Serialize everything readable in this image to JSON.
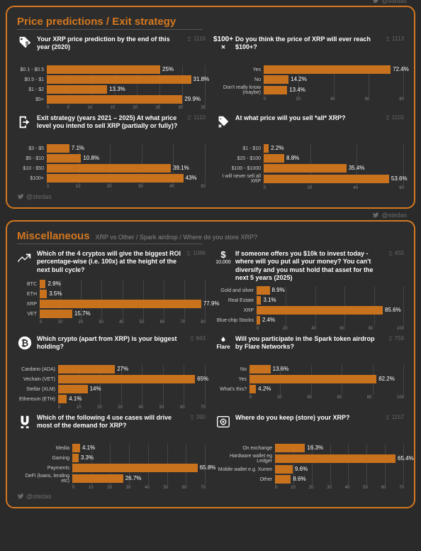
{
  "twitter_handle": "@stedas",
  "colors": {
    "accent": "#d47820",
    "bar": "#c9721e",
    "bg": "#2d2d2d",
    "text": "#ffffff",
    "muted": "#888888",
    "grid": "#444444"
  },
  "panels": [
    {
      "title": "Price predictions / Exit strategy",
      "subtitle": "",
      "charts": [
        {
          "icon": "tag",
          "question": "Your XRP price prediction by the end of this year (2020)",
          "votes": "1116",
          "label_width": 42,
          "xmax": 35,
          "xstep": 5,
          "bars": [
            {
              "label": "$0.1 - $0.5",
              "value": 25,
              "text": "25%"
            },
            {
              "label": "$0.5 - $1",
              "value": 31.8,
              "text": "31.8%"
            },
            {
              "label": "$1 - $2",
              "value": 13.3,
              "text": "13.3%"
            },
            {
              "label": "$5+",
              "value": 29.9,
              "text": "29.9%"
            }
          ]
        },
        {
          "icon": "hundred",
          "icon_text": "$100+",
          "question": "Do you think the price of XRP will ever reach $100+?",
          "votes": "1113",
          "label_width": 68,
          "xmax": 80,
          "xstep": 20,
          "bars": [
            {
              "label": "Yes",
              "value": 72.4,
              "text": "72.4%"
            },
            {
              "label": "No",
              "value": 14.2,
              "text": "14.2%"
            },
            {
              "label": "Don't really know (maybe)",
              "value": 13.4,
              "text": "13.4%"
            }
          ]
        },
        {
          "icon": "exit",
          "question": "Exit strategy (years 2021 – 2025) At what price level you intend to sell XRP (partially or fully)?",
          "votes": "1110",
          "label_width": 42,
          "xmax": 50,
          "xstep": 10,
          "bars": [
            {
              "label": "$3 - $5",
              "value": 7.1,
              "text": "7.1%"
            },
            {
              "label": "$5 - $10",
              "value": 10.8,
              "text": "10.8%"
            },
            {
              "label": "$10 - $50",
              "value": 39.1,
              "text": "39.1%"
            },
            {
              "label": "$100+",
              "value": 43,
              "text": "43%"
            }
          ]
        },
        {
          "icon": "sell-tag",
          "question": "At what price will you sell *all* XRP?",
          "votes": "1102",
          "label_width": 68,
          "xmax": 60,
          "xstep": 20,
          "bars": [
            {
              "label": "$1 - $10",
              "value": 2.2,
              "text": "2.2%"
            },
            {
              "label": "$20 - $100",
              "value": 8.8,
              "text": "8.8%"
            },
            {
              "label": "$100 - $1000",
              "value": 35.4,
              "text": "35.4%"
            },
            {
              "label": "I will never sell all XRP",
              "value": 53.6,
              "text": "53.6%"
            }
          ]
        }
      ]
    },
    {
      "title": "Miscellaneous",
      "subtitle": "XRP vs Other / Spark airdrop / Where do you store XRP?",
      "charts": [
        {
          "icon": "chart-up",
          "question": "Which of the 4 cryptos will give the biggest ROI percentage-wise (i.e. 100x) at the height of the next bull cycle?",
          "votes": "1086",
          "label_width": 32,
          "xmax": 80,
          "xstep": 10,
          "bars": [
            {
              "label": "BTC",
              "value": 2.9,
              "text": "2.9%"
            },
            {
              "label": "ETH",
              "value": 3.5,
              "text": "3.5%"
            },
            {
              "label": "XRP",
              "value": 77.9,
              "text": "77.9%"
            },
            {
              "label": "VET",
              "value": 15.7,
              "text": "15.7%"
            }
          ]
        },
        {
          "icon": "tenk",
          "icon_text": "$",
          "icon_sub": "10,000",
          "question": "If someone offers you $10k to invest today - where will you put all your money? You can't diversify and you must hold that asset for the next 5 years (2025)",
          "votes": "450",
          "label_width": 58,
          "xmax": 100,
          "xstep": 20,
          "bars": [
            {
              "label": "Gold and silver",
              "value": 8.9,
              "text": "8.9%"
            },
            {
              "label": "Real Estate",
              "value": 3.1,
              "text": "3.1%"
            },
            {
              "label": "XRP",
              "value": 85.6,
              "text": "85.6%"
            },
            {
              "label": "Blue-chip Stocks",
              "value": 2.4,
              "text": "2.4%"
            }
          ]
        },
        {
          "icon": "bitcoin",
          "question": "Which crypto (apart from XRP) is your biggest holding?",
          "votes": "843",
          "label_width": 58,
          "xmax": 70,
          "xstep": 10,
          "bars": [
            {
              "label": "Cardano (ADA)",
              "value": 27,
              "text": "27%"
            },
            {
              "label": "Vechain (VET)",
              "value": 65,
              "text": "65%"
            },
            {
              "label": "Stellar (XLM)",
              "value": 14,
              "text": "14%"
            },
            {
              "label": "Ethereum (ETH)",
              "value": 4.1,
              "text": "4.1%"
            }
          ]
        },
        {
          "icon": "flare",
          "icon_text": "Flare",
          "question": "Will you participate in the Spark token airdrop by Flare Networks?",
          "votes": "759",
          "label_width": 48,
          "xmax": 100,
          "xstep": 20,
          "bars": [
            {
              "label": "No",
              "value": 13.6,
              "text": "13.6%"
            },
            {
              "label": "Yes",
              "value": 82.2,
              "text": "82.2%"
            },
            {
              "label": "What's this?",
              "value": 4.2,
              "text": "4.2%"
            }
          ]
        },
        {
          "icon": "magnet",
          "question": "Which of the following 4 use cases will drive most of the demand for XRP?",
          "votes": "390",
          "label_width": 78,
          "xmax": 70,
          "xstep": 10,
          "bars": [
            {
              "label": "Media",
              "value": 4.1,
              "text": "4.1%"
            },
            {
              "label": "Gaming",
              "value": 3.3,
              "text": "3.3%"
            },
            {
              "label": "Payments",
              "value": 65.8,
              "text": "65.8%"
            },
            {
              "label": "DeFi (loans, lending etc)",
              "value": 26.7,
              "text": "26.7%"
            }
          ]
        },
        {
          "icon": "vault",
          "question": "Where do you keep (store) your XRP?",
          "votes": "1157",
          "label_width": 84,
          "xmax": 70,
          "xstep": 10,
          "bars": [
            {
              "label": "On exchange",
              "value": 16.3,
              "text": "16.3%"
            },
            {
              "label": "Hardware wallet eg Ledger",
              "value": 65.4,
              "text": "65.4%"
            },
            {
              "label": "Mobile wallet e.g. Xumm",
              "value": 9.6,
              "text": "9.6%"
            },
            {
              "label": "Other",
              "value": 8.6,
              "text": "8.6%"
            }
          ]
        }
      ]
    }
  ]
}
